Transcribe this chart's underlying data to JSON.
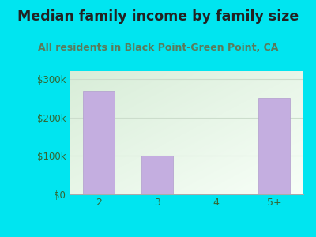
{
  "title": "Median family income by family size",
  "subtitle": "All residents in Black Point-Green Point, CA",
  "categories": [
    "2",
    "3",
    "4",
    "5+"
  ],
  "values": [
    268000,
    101000,
    0,
    250000
  ],
  "bar_color": "#c4aee0",
  "bar_edge_color": "#b09ccc",
  "yticks": [
    0,
    100000,
    200000,
    300000
  ],
  "ytick_labels": [
    "$0",
    "$100k",
    "$200k",
    "$300k"
  ],
  "ylim": [
    0,
    320000
  ],
  "outer_bg": "#00e5f0",
  "plot_bg_topleft": "#d8edd8",
  "plot_bg_bottomright": "#f8fff8",
  "title_color": "#222222",
  "subtitle_color": "#5a7a5a",
  "tick_color": "#336633",
  "axis_label_color": "#336633",
  "title_fontsize": 12.5,
  "subtitle_fontsize": 9,
  "gridline_color": "#ccddcc"
}
